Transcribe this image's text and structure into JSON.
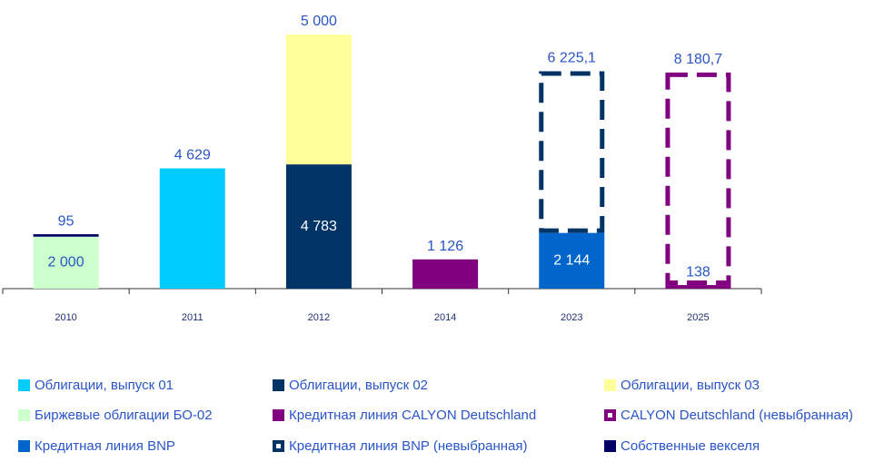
{
  "chart_data": {
    "type": "stacked_bar",
    "categories": [
      "2010",
      "2011",
      "2012",
      "2014",
      "2023",
      "2025"
    ],
    "series": [
      {
        "name": "Облигации, выпуск 01",
        "color": "#00ccff",
        "values": [
          null,
          4629,
          null,
          null,
          null,
          null
        ],
        "value_labels": [
          null,
          "4 629",
          null,
          null,
          null,
          null
        ]
      },
      {
        "name": "Облигации, выпуск 02",
        "color": "#003366",
        "values": [
          null,
          null,
          4783,
          null,
          null,
          null
        ],
        "value_labels": [
          null,
          null,
          "4 783",
          null,
          null,
          null
        ]
      },
      {
        "name": "Облигации, выпуск 03",
        "color": "#ffff99",
        "values": [
          null,
          null,
          5000,
          null,
          null,
          null
        ],
        "value_labels": [
          null,
          null,
          "5 000",
          null,
          null,
          null
        ]
      },
      {
        "name": "Биржевые облигации БО-02",
        "color": "#ccffcc",
        "values": [
          2000,
          null,
          null,
          null,
          null,
          null
        ],
        "value_labels": [
          "2 000",
          null,
          null,
          null,
          null,
          null
        ]
      },
      {
        "name": "Кредитная линия CALYON Deutschland",
        "color": "#800080",
        "values": [
          null,
          null,
          null,
          1126,
          null,
          138
        ],
        "value_labels": [
          null,
          null,
          null,
          "1 126",
          null,
          "138"
        ]
      },
      {
        "name": "CALYON Deutschland (невыбранная)",
        "color": "#800080",
        "dashed": true,
        "values": [
          null,
          null,
          null,
          null,
          null,
          8180.7
        ],
        "value_labels": [
          null,
          null,
          null,
          null,
          null,
          "8 180,7"
        ]
      },
      {
        "name": "Кредитная линия BNP",
        "color": "#0066cc",
        "values": [
          null,
          null,
          null,
          null,
          2144,
          null
        ],
        "value_labels": [
          null,
          null,
          null,
          null,
          "2 144",
          null
        ]
      },
      {
        "name": "Кредитная линия BNP (невыбранная)",
        "color": "#003366",
        "dashed": true,
        "values": [
          null,
          null,
          null,
          null,
          6225.1,
          null
        ],
        "value_labels": [
          null,
          null,
          null,
          null,
          "6 225,1",
          null
        ]
      },
      {
        "name": "Собственные векселя",
        "color": "#000066",
        "values": [
          95,
          null,
          null,
          null,
          null,
          null
        ],
        "value_labels": [
          "95",
          null,
          null,
          null,
          null,
          null
        ]
      }
    ]
  }
}
